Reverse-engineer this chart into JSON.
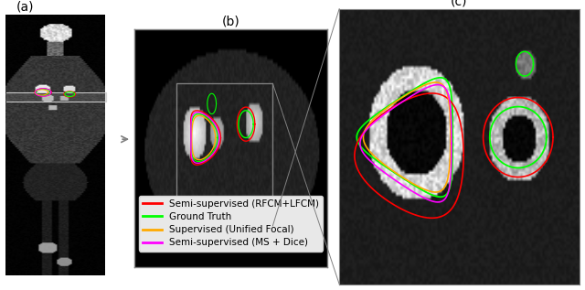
{
  "title_a": "(a)",
  "title_b": "(b)",
  "title_c": "(c)",
  "legend_entries": [
    {
      "label": "Semi-supervised (RFCM+LFCM)",
      "color": "#ff0000"
    },
    {
      "label": "Ground Truth",
      "color": "#00ff00"
    },
    {
      "label": "Supervised (Unified Focal)",
      "color": "#ffaa00"
    },
    {
      "label": "Semi-supervised (MS + Dice)",
      "color": "#ff00ff"
    }
  ],
  "background_color": "#ffffff",
  "legend_box_color": "#e8e8e8",
  "panel_label_fontsize": 10,
  "legend_fontsize": 7.5
}
